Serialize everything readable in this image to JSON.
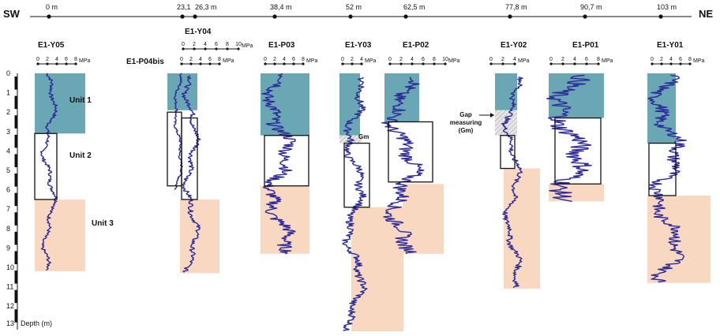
{
  "compass": {
    "left": "SW",
    "right": "NE"
  },
  "distance_axis": {
    "labels": [
      "0 m",
      "23,1",
      "26,3 m",
      "38,4 m",
      "52 m",
      "62,5 m",
      "77,8 m",
      "90,7 m",
      "103 m"
    ]
  },
  "depth_axis": {
    "ticks": [
      "0",
      "1",
      "2",
      "3",
      "4",
      "5",
      "6",
      "7",
      "8",
      "9",
      "10",
      "11",
      "12",
      "13"
    ],
    "title": "Depth (m)"
  },
  "pressure_scale": {
    "unit": "MPa",
    "ticks_8": [
      "0",
      "2",
      "4",
      "6",
      "8"
    ],
    "ticks_10": [
      "0",
      "2",
      "4",
      "6",
      "8",
      "10"
    ],
    "ticks_4": [
      "0",
      "2",
      "4"
    ]
  },
  "profiles": [
    {
      "id": "E1-Y05",
      "max_depth_m": 10.2
    },
    {
      "id": "E1-Y04",
      "max_depth_m": 6.5
    },
    {
      "id": "E1-P04bis",
      "max_depth_m": 6.0
    },
    {
      "id": "E1-P03",
      "max_depth_m": 9.3
    },
    {
      "id": "E1-Y03",
      "max_depth_m": 13.3
    },
    {
      "id": "E1-P02",
      "max_depth_m": 9.3
    },
    {
      "id": "E1-Y02",
      "max_depth_m": 11.1
    },
    {
      "id": "E1-P01",
      "max_depth_m": 6.8
    },
    {
      "id": "E1-Y01",
      "max_depth_m": 10.8
    }
  ],
  "units": {
    "unit1": "Unit 1",
    "unit2": "Unit 2",
    "unit3": "Unit 3"
  },
  "annotations": {
    "gm": "Gm",
    "gap_line1": "Gap",
    "gap_line2": "measuring",
    "gap_line3": "(Gm)"
  },
  "colors": {
    "unit1": "#6aa7b5",
    "unit3": "#f9d8c2",
    "trace": "#2d2a9a",
    "gap": "#cfcfcf"
  }
}
